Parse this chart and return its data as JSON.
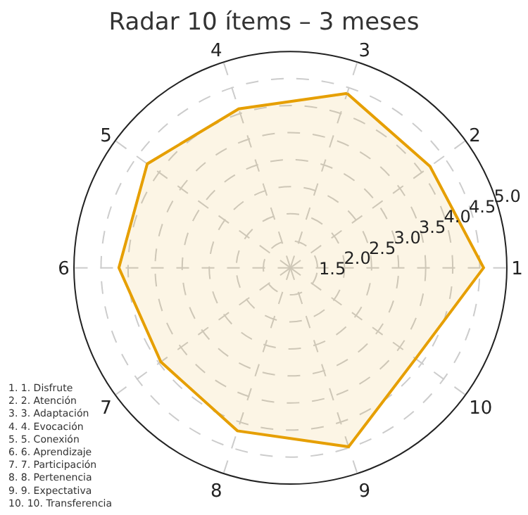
{
  "chart_data": {
    "type": "radar",
    "title": "Radar 10 ítems – 3 meses",
    "categories": [
      "3",
      "2",
      "1",
      "10",
      "9",
      "8",
      "7",
      "6",
      "5",
      "4"
    ],
    "series": [
      {
        "color": "#e69f00",
        "values": [
          4.39,
          4.19,
          4.57,
          3.86,
          4.48,
          4.17,
          3.96,
          4.17,
          4.27,
          4.09
        ]
      }
    ],
    "ylim": [
      1.0,
      5.0
    ],
    "yticks": [
      {
        "value": 1.5,
        "label": "1.5"
      },
      {
        "value": 2.0,
        "label": "2.0"
      },
      {
        "value": 2.5,
        "label": "2.5"
      },
      {
        "value": 3.0,
        "label": "3.0"
      },
      {
        "value": 3.5,
        "label": "3.5"
      },
      {
        "value": 4.0,
        "label": "4.0"
      },
      {
        "value": 4.5,
        "label": "4.5"
      },
      {
        "value": 5.0,
        "label": "5.0"
      }
    ],
    "grid": true,
    "line_style": "solid",
    "marker": "none",
    "annotations": [
      "1. 1. Disfrute\n2. 2. Atención\n3. 3. Adaptación\n4. 4. Evocación\n5. 5. Conexión\n6. 6. Aprendizaje\n7. 7. Participación\n8. 8. Pertenencia\n9. 9. Expectativa\n10. 10. Transferencia"
    ]
  }
}
